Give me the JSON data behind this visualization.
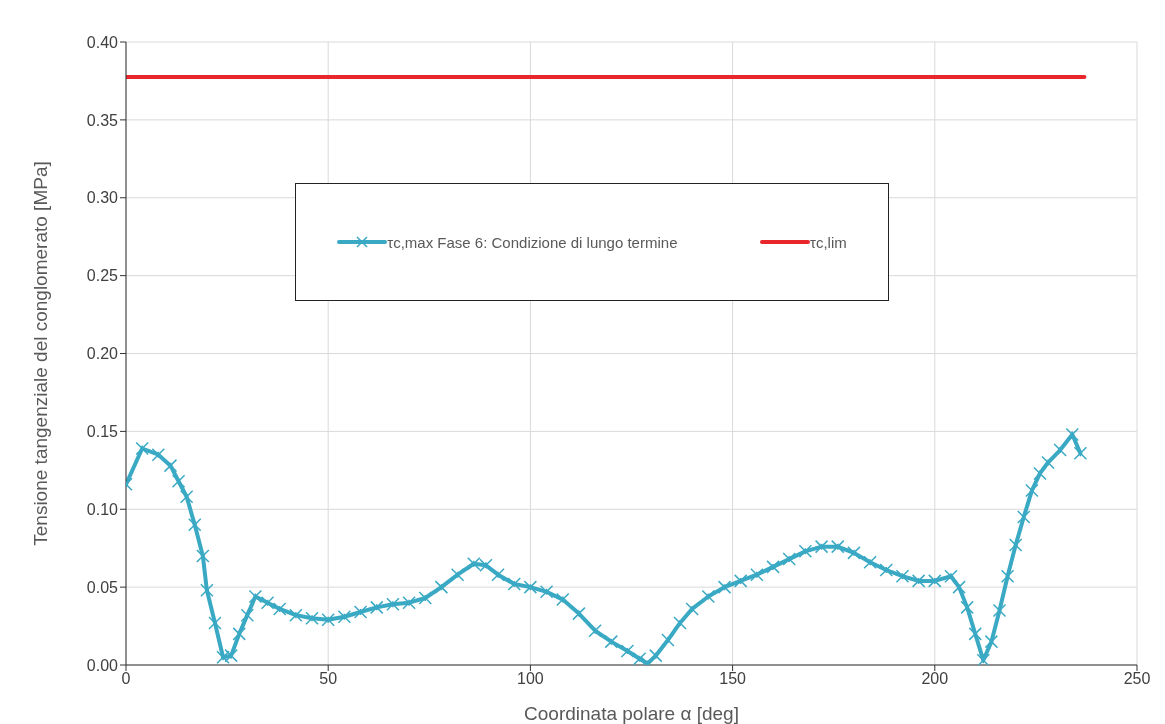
{
  "chart_data": {
    "type": "line",
    "xlabel": "Coordinata polare α [deg]",
    "ylabel": "Tensione tangenziale del conglomerato [MPa]",
    "xlim": [
      0,
      250
    ],
    "xticks": [
      0,
      50,
      100,
      150,
      200,
      250
    ],
    "ylim": [
      0,
      0.4
    ],
    "yticks": [
      {
        "value": 0,
        "label": "0.00"
      },
      {
        "value": 0.05,
        "label": "0.05"
      },
      {
        "value": 0.1,
        "label": "0.10"
      },
      {
        "value": 0.15,
        "label": "0.15"
      },
      {
        "value": 0.2,
        "label": "0.20"
      },
      {
        "value": 0.25,
        "label": "0.25"
      },
      {
        "value": 0.3,
        "label": "0.30"
      },
      {
        "value": 0.35,
        "label": "0.35"
      },
      {
        "value": 0.4,
        "label": "0.40"
      }
    ],
    "grid": true,
    "legend": "top",
    "series": [
      {
        "name": "τc,max Fase 6: Condizione di lungo termine",
        "color": "#3aa9c4",
        "marker": "cross",
        "line_style": "solid",
        "x": [
          0,
          4,
          8,
          11,
          13,
          15,
          17,
          19,
          20,
          22,
          24,
          26,
          28,
          30,
          32,
          35,
          38,
          42,
          46,
          50,
          54,
          58,
          62,
          66,
          70,
          74,
          78,
          82,
          86,
          89,
          92,
          96,
          100,
          104,
          108,
          112,
          116,
          120,
          124,
          127,
          129,
          131,
          134,
          137,
          140,
          144,
          148,
          152,
          156,
          160,
          164,
          168,
          172,
          176,
          180,
          184,
          188,
          192,
          196,
          200,
          204,
          206,
          208,
          210,
          212,
          214,
          216,
          218,
          220,
          222,
          224,
          226,
          228,
          231,
          234,
          236
        ],
        "values": [
          0.116,
          0.139,
          0.135,
          0.128,
          0.118,
          0.108,
          0.09,
          0.07,
          0.048,
          0.027,
          0.005,
          0.006,
          0.02,
          0.032,
          0.044,
          0.04,
          0.036,
          0.032,
          0.03,
          0.029,
          0.031,
          0.034,
          0.037,
          0.039,
          0.04,
          0.043,
          0.05,
          0.058,
          0.065,
          0.064,
          0.058,
          0.052,
          0.05,
          0.047,
          0.042,
          0.033,
          0.022,
          0.015,
          0.009,
          0.004,
          0.001,
          0.006,
          0.016,
          0.027,
          0.036,
          0.044,
          0.05,
          0.054,
          0.058,
          0.063,
          0.068,
          0.073,
          0.076,
          0.076,
          0.072,
          0.066,
          0.061,
          0.057,
          0.054,
          0.054,
          0.057,
          0.05,
          0.037,
          0.02,
          0.003,
          0.015,
          0.035,
          0.057,
          0.077,
          0.095,
          0.112,
          0.123,
          0.13,
          0.138,
          0.148,
          0.136
        ]
      },
      {
        "name": "τc,lim",
        "color": "#e8262c",
        "marker": "none",
        "line_style": "solid",
        "x": [
          0,
          237
        ],
        "values": [
          0.3775,
          0.3775
        ]
      }
    ]
  }
}
